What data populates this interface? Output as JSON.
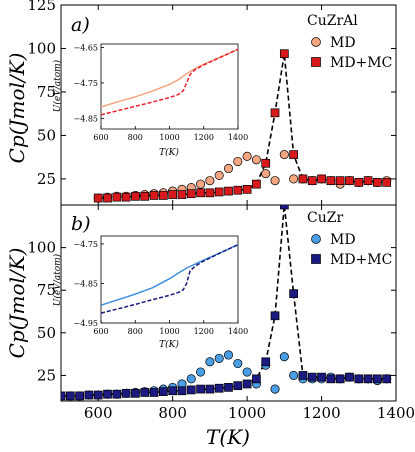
{
  "colors": {
    "cuzral_md": "#f4a582",
    "cuzral_mc": "#d7191c",
    "cuzr_md": "#4a9ee6",
    "cuzr_mc": "#1a1a80",
    "cuzral_inset_md": "#f4a582",
    "cuzral_inset_mc": "#e8202a",
    "cuzr_inset_md": "#3d8fe0",
    "cuzr_inset_mc": "#1a1a80"
  },
  "xlabel": "T(K)",
  "ylabel": "Cp(Jmol/K)",
  "chart_data": [
    {
      "type": "scatter",
      "panel_label": "a)",
      "legend_title": "CuZrAl",
      "legend_position": "top-right",
      "xlim": [
        500,
        1400
      ],
      "ylim": [
        10,
        125
      ],
      "xticks": [
        600,
        800,
        1000,
        1200,
        1400
      ],
      "yticks": [
        25,
        50,
        75,
        100,
        125
      ],
      "series": [
        {
          "name": "MD",
          "marker": "circle",
          "x": [
            600,
            625,
            650,
            675,
            700,
            725,
            750,
            775,
            800,
            825,
            850,
            875,
            900,
            925,
            950,
            975,
            1000,
            1025,
            1050,
            1075,
            1100,
            1125,
            1150,
            1175,
            1200,
            1225,
            1250,
            1275,
            1300,
            1325,
            1350,
            1375
          ],
          "y": [
            14,
            14.5,
            15,
            15,
            15.5,
            16,
            16.5,
            17,
            18,
            19,
            20,
            22,
            24,
            27,
            31,
            35,
            38,
            36,
            28,
            24,
            39,
            25,
            25,
            24,
            25,
            24,
            22,
            24,
            23,
            24,
            23,
            24
          ]
        },
        {
          "name": "MD+MC",
          "marker": "square",
          "x": [
            600,
            625,
            650,
            675,
            700,
            725,
            750,
            775,
            800,
            825,
            850,
            875,
            900,
            925,
            950,
            975,
            1000,
            1025,
            1050,
            1075,
            1100,
            1125,
            1150,
            1175,
            1200,
            1225,
            1250,
            1275,
            1300,
            1325,
            1350,
            1375
          ],
          "y": [
            14,
            14,
            14.5,
            14.5,
            15,
            15,
            15.5,
            15.5,
            16,
            16,
            16.5,
            17,
            17,
            17.5,
            18,
            18.5,
            19,
            22,
            34,
            63,
            97,
            39,
            25,
            24,
            25,
            24,
            24,
            24,
            23,
            24,
            23,
            23
          ]
        }
      ],
      "inset": {
        "xlabel": "T(K)",
        "ylabel": "U(eV/atom)",
        "xlim": [
          600,
          1400
        ],
        "ylim": [
          -4.88,
          -4.64
        ],
        "xticks": [
          600,
          800,
          1000,
          1200,
          1400
        ],
        "yticks": [
          -4.65,
          -4.75,
          -4.85
        ],
        "ytick_labels": [
          "−4.65",
          "−4.75",
          "−4.85"
        ],
        "series": [
          {
            "name": "MD",
            "style": "solid",
            "x": [
              600,
              700,
              800,
              900,
              1000,
              1050,
              1100,
              1150,
              1200,
              1300,
              1400
            ],
            "y": [
              -4.818,
              -4.803,
              -4.789,
              -4.773,
              -4.754,
              -4.741,
              -4.724,
              -4.709,
              -4.697,
              -4.676,
              -4.655
            ]
          },
          {
            "name": "MD+MC",
            "style": "dashed",
            "x": [
              600,
              700,
              800,
              900,
              1000,
              1050,
              1080,
              1100,
              1120,
              1150,
              1200,
              1300,
              1400
            ],
            "y": [
              -4.84,
              -4.828,
              -4.816,
              -4.804,
              -4.791,
              -4.783,
              -4.772,
              -4.75,
              -4.726,
              -4.712,
              -4.699,
              -4.677,
              -4.655
            ]
          }
        ]
      }
    },
    {
      "type": "scatter",
      "panel_label": "b)",
      "legend_title": "CuZr",
      "legend_position": "top-right",
      "xlim": [
        500,
        1400
      ],
      "ylim": [
        10,
        125
      ],
      "xticks": [
        600,
        800,
        1000,
        1200,
        1400
      ],
      "yticks": [
        25,
        50,
        75,
        100
      ],
      "series": [
        {
          "name": "MD",
          "marker": "circle",
          "x": [
            500,
            525,
            550,
            575,
            600,
            625,
            650,
            675,
            700,
            725,
            750,
            775,
            800,
            825,
            850,
            875,
            900,
            925,
            950,
            975,
            1000,
            1025,
            1050,
            1075,
            1100,
            1125,
            1150,
            1175,
            1200,
            1225,
            1250,
            1275,
            1300,
            1325,
            1350,
            1375
          ],
          "y": [
            13,
            13,
            13,
            13.5,
            13.5,
            14,
            14,
            14.5,
            15,
            15.5,
            16,
            17,
            18,
            20,
            23,
            27,
            33,
            35,
            37,
            32,
            27,
            20,
            31,
            17,
            36,
            25,
            23,
            23,
            23,
            24,
            23,
            24,
            23,
            23,
            22,
            23
          ]
        },
        {
          "name": "MD+MC",
          "marker": "square",
          "x": [
            500,
            525,
            550,
            575,
            600,
            625,
            650,
            675,
            700,
            725,
            750,
            775,
            800,
            825,
            850,
            875,
            900,
            925,
            950,
            975,
            1000,
            1025,
            1050,
            1075,
            1100,
            1125,
            1150,
            1175,
            1200,
            1225,
            1250,
            1275,
            1300,
            1325,
            1350,
            1375
          ],
          "y": [
            13,
            13,
            13,
            13.5,
            13.5,
            14,
            14,
            14.5,
            14.5,
            15,
            15,
            15.5,
            16,
            16,
            16.5,
            17,
            17,
            17.5,
            18,
            19,
            20,
            23,
            33,
            60,
            125,
            73,
            25,
            24,
            24,
            23,
            23,
            24,
            23,
            23,
            23,
            23
          ]
        }
      ],
      "inset": {
        "xlabel": "T(K)",
        "ylabel": "U(eV/atom)",
        "xlim": [
          600,
          1400
        ],
        "ylim": [
          -4.95,
          -4.73
        ],
        "xticks": [
          600,
          800,
          1000,
          1200,
          1400
        ],
        "yticks": [
          -4.75,
          -4.85,
          -4.95
        ],
        "ytick_labels": [
          "−4.75",
          "−4.85",
          "−4.95"
        ],
        "series": [
          {
            "name": "MD",
            "style": "solid",
            "x": [
              600,
              700,
              800,
              900,
              1000,
              1050,
              1100,
              1150,
              1200,
              1300,
              1400
            ],
            "y": [
              -4.905,
              -4.891,
              -4.877,
              -4.861,
              -4.838,
              -4.824,
              -4.811,
              -4.801,
              -4.791,
              -4.772,
              -4.752
            ]
          },
          {
            "name": "MD+MC",
            "style": "dashed",
            "x": [
              600,
              700,
              800,
              900,
              1000,
              1050,
              1080,
              1100,
              1120,
              1150,
              1200,
              1300,
              1400
            ],
            "y": [
              -4.925,
              -4.914,
              -4.903,
              -4.891,
              -4.88,
              -4.873,
              -4.866,
              -4.85,
              -4.818,
              -4.806,
              -4.793,
              -4.772,
              -4.752
            ]
          }
        ]
      }
    }
  ]
}
